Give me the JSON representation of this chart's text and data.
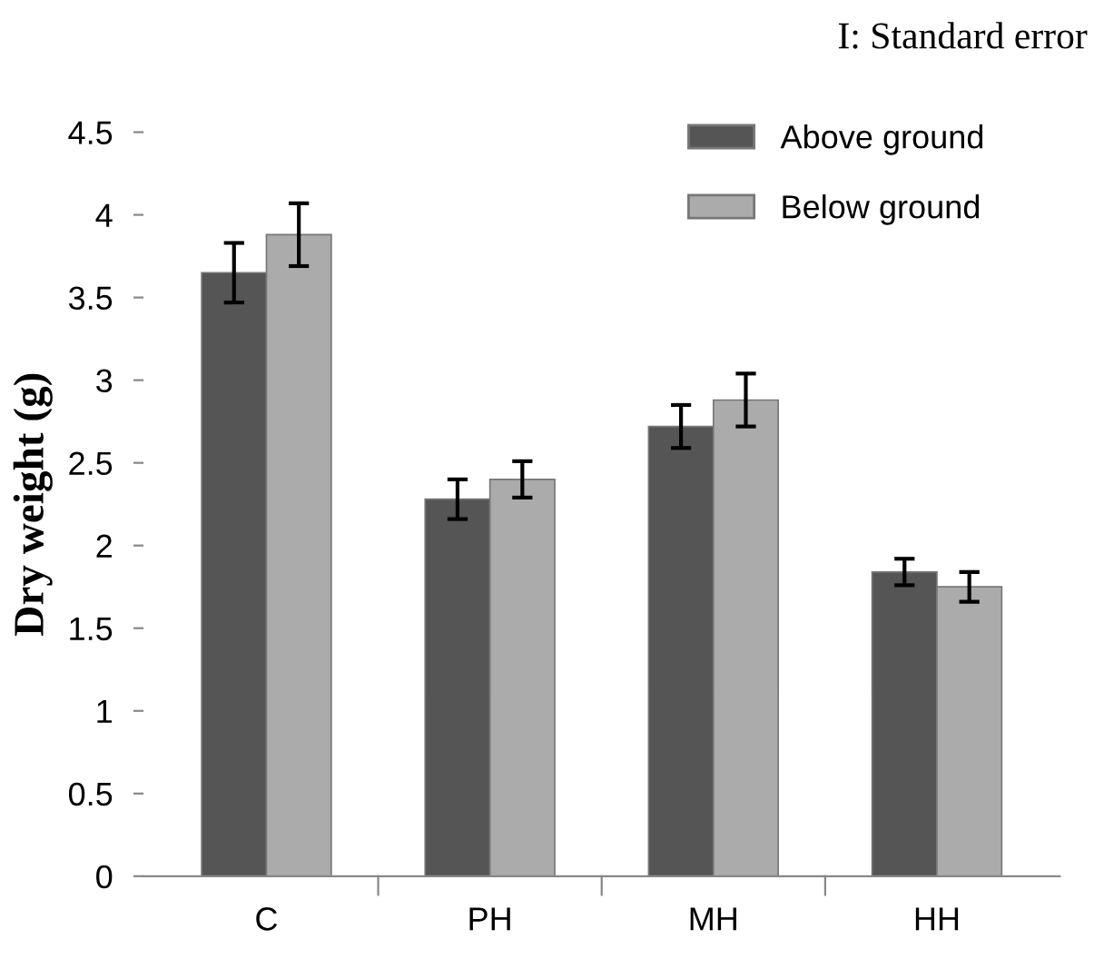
{
  "chart_data": {
    "type": "bar",
    "ylabel": "Dry weight (g)",
    "categories": [
      "C",
      "PH",
      "MH",
      "HH"
    ],
    "series": [
      {
        "name": "Above ground",
        "color": "#555555",
        "values": [
          3.65,
          2.28,
          2.72,
          1.84
        ],
        "errors": [
          0.18,
          0.12,
          0.13,
          0.08
        ]
      },
      {
        "name": "Below ground",
        "color": "#ababab",
        "values": [
          3.88,
          2.4,
          2.88,
          1.75
        ],
        "errors": [
          0.19,
          0.11,
          0.16,
          0.09
        ]
      }
    ],
    "ylim": [
      0,
      4.5
    ],
    "yticks": [
      0,
      0.5,
      1,
      1.5,
      2,
      2.5,
      3,
      3.5,
      4,
      4.5
    ],
    "annotations": [
      "I: Standard error"
    ],
    "legend": "top right",
    "grid": false
  }
}
